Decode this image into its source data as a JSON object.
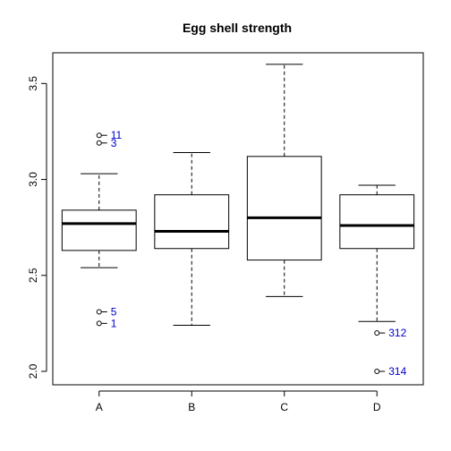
{
  "chart_data": {
    "type": "boxplot",
    "title": "Egg shell strength",
    "xlabel": "",
    "ylabel": "",
    "ylim": [
      1.93,
      3.66
    ],
    "y_ticks": [
      2.0,
      2.5,
      3.0,
      3.5
    ],
    "y_tick_labels": [
      "2.0",
      "2.5",
      "3.0",
      "3.5"
    ],
    "categories": [
      "A",
      "B",
      "C",
      "D"
    ],
    "boxes": [
      {
        "category": "A",
        "whisker_low": 2.54,
        "q1": 2.63,
        "median": 2.77,
        "q3": 2.84,
        "whisker_high": 3.03
      },
      {
        "category": "B",
        "whisker_low": 2.24,
        "q1": 2.64,
        "median": 2.73,
        "q3": 2.92,
        "whisker_high": 3.14
      },
      {
        "category": "C",
        "whisker_low": 2.39,
        "q1": 2.58,
        "median": 2.8,
        "q3": 3.12,
        "whisker_high": 3.6
      },
      {
        "category": "D",
        "whisker_low": 2.26,
        "q1": 2.64,
        "median": 2.76,
        "q3": 2.92,
        "whisker_high": 2.97
      }
    ],
    "outliers": [
      {
        "category": "A",
        "value": 3.23,
        "label": "11"
      },
      {
        "category": "A",
        "value": 3.19,
        "label": "3"
      },
      {
        "category": "A",
        "value": 2.31,
        "label": "5"
      },
      {
        "category": "A",
        "value": 2.25,
        "label": "1"
      },
      {
        "category": "D",
        "value": 2.2,
        "label": "312"
      },
      {
        "category": "D",
        "value": 2.0,
        "label": "314"
      }
    ],
    "colors": {
      "box": "#000000",
      "outlier_label": "#0000CC"
    }
  }
}
